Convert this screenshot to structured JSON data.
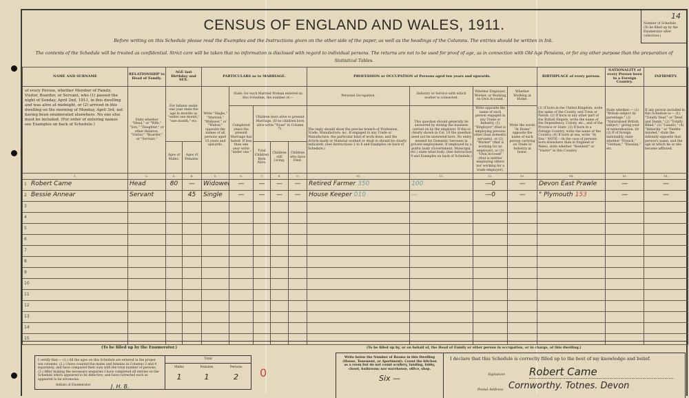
{
  "title": "CENSUS OF ENGLAND AND WALES, 1911.",
  "instructions": "Before writing on this Schedule please read the Examples and the Instructions given on the other side of the paper, as well as the headings of the Columns. The entries should be written in Ink.",
  "confidential": "The contents of the Schedule will be treated as confidential. Strict care will be taken that no information is disclosed with regard to individual persons. The returns are not to be used for proof of age, as in connection with Old Age Pensions, or for any other purpose than the preparation of Statistical Tables.",
  "schedule": {
    "label": "Number of Schedule",
    "note": "(To be filled up by the Enumerator after collection.)",
    "value": "14"
  },
  "headers": {
    "name": "NAME AND SURNAME",
    "relationship": "RELATIONSHIP to Head of Family.",
    "age": "AGE last Birthday and SEX.",
    "marriage": "PARTICULARS as to MARRIAGE.",
    "occupation": "PROFESSION or OCCUPATION of Persons aged ten years and upwards.",
    "birthplace": "BIRTHPLACE of every person.",
    "nationality": "NATIONALITY of every Person born in a Foreign Country.",
    "infirmity": "INFIRMITY."
  },
  "bodies": {
    "c1": "of every Person, whether Member of Family, Visitor, Boarder, or Servant, who (1) passed the night of Sunday, April 2nd, 1911, in this dwelling and was alive at midnight, or (2) arrived in this dwelling on the morning of Monday, April 3rd, not having been enumerated elsewhere. No one else must be included. (For order of entering names see Examples on back of Schedule.)",
    "c2": "State whether \"Head,\" or \"Wife,\" \"Son,\" \"Daughter,\" or other Relative, \"Visitor,\" \"Boarder,\" or \"Servant.\"",
    "c3top": "For Infants under one year state the age in months as \"under one month,\" \"one month,\" etc.",
    "c3": "Ages of Males.",
    "c4": "Ages of Females.",
    "c5": "Write \"Single,\" \"Married,\" \"Widower,\" or \"Widow,\" opposite the names of all persons aged 15 years and upwards.",
    "c6to9top": "State, for each Married Woman entered on this Schedule, the number of:—",
    "c6": "Completed years the present Marriage has lasted. If less than one year write \"under one.\"",
    "c7to9top": "Children born alive to present Marriage. (If no children born alive write \"None\" in Column 7).",
    "c7": "Total Children Born Alive.",
    "c8": "Children still Living.",
    "c9": "Children who have Died.",
    "c10top": "Personal Occupation.",
    "c10": "The reply should show the precise branch of Profession, Trade, Manufacture, &c. If engaged in any Trade or Manufacture, the particular kind of work done, and the Article made or Material worked or dealt in should be clearly indicated. (See Instructions 1 to 8 and Examples on back of Schedule.)",
    "c11top": "Industry or Service with which worker is connected.",
    "c11": "This question should generally be answered by stating the business carried on by the employer. If this is clearly shown in Col. 10 the question need not be answered here. No entry needed for Domestic Servants in private employment. If employed by a public body (Government, Municipal, etc.) state what body. (See Instruction 9 and Examples on back of Schedule.)",
    "c12top": "Whether Employer, Worker, or Working on Own Account.",
    "c12": "Write opposite the name of each person engaged in any Trade or Industry, (1) \"Employer\" (that is employing persons other than domestic servants), or (2) \"Worker\" (that is working for an employer), or (3) \"Own Account\" (that is neither employing others nor working for a trade employer).",
    "c13top": "Whether Working at Home.",
    "c13": "Write the words \"At Home\" opposite the name of each person carrying on Trade or Industry at home.",
    "c14": "(1) If born in the United Kingdom, write the name of the County, and Town or Parish. (2) If born in any other part of the British Empire, write the name of the Dependency, Colony, etc., and of the Province or State. (3) If born in a Foreign Country, write the name of the Country. (4) If born at sea, write \"At Sea.\" NOTE.—In the case of persons born elsewhere than in England or Wales, state whether \"Resident\" or \"Visitor\" in this Country.",
    "c15": "State whether:— (1) \"British subject by parentage.\" (2) \"Naturalised British subject,\" giving year of naturalisation. Or (3) If of foreign nationality, state whether \"French,\" \"German,\" \"Russian,\" etc.",
    "c16": "If any person included in this Schedule is:— (1) \"Totally Deaf,\" or \"Deaf and Dumb,\" (2) \"Totally Blind,\" (3) \"Lunatic,\" (4) \"Imbecile,\" or \"Feeble-minded,\" state the infirmity opposite that person's name, and the age at which he or she became afflicted."
  },
  "col_numbers": [
    "1.",
    "2.",
    "3.",
    "4.",
    "5.",
    "6.",
    "7.",
    "8.",
    "9.",
    "10.",
    "11.",
    "12.",
    "13.",
    "14.",
    "15.",
    "16."
  ],
  "rows": [
    {
      "n": "1",
      "name": "Robert Came",
      "rel": "Head",
      "male": "80",
      "female": "—",
      "marriage": "Widower",
      "c6": "—",
      "c7": "—",
      "c8": "—",
      "c9": "—",
      "occ": "Retired Farmer",
      "occ_code": "350",
      "ind": "100",
      "emp": "—0",
      "home": "—",
      "birth": "Devon East Prawle",
      "nat": "—",
      "inf": "—"
    },
    {
      "n": "2",
      "name": "Bessie Annear",
      "rel": "Servant",
      "male": "",
      "female": "45",
      "marriage": "Single",
      "c6": "—",
      "c7": "—",
      "c8": "—",
      "c9": "—",
      "occ": "House Keeper",
      "occ_code": "010",
      "ind": "—",
      "emp": "—0",
      "home": "—",
      "birth": "\" Plymouth",
      "birth_code": "153",
      "nat": "—",
      "inf": "—"
    },
    {
      "n": "3"
    },
    {
      "n": "4"
    },
    {
      "n": "5"
    },
    {
      "n": "6"
    },
    {
      "n": "7"
    },
    {
      "n": "8"
    },
    {
      "n": "9"
    },
    {
      "n": "10"
    },
    {
      "n": "11"
    },
    {
      "n": "12"
    },
    {
      "n": "13"
    },
    {
      "n": "14"
    },
    {
      "n": "15"
    }
  ],
  "enumerator": {
    "heading": "(To be filled up by the Enumerator.)",
    "certify": "I certify that:— (1.) All the ages on this Schedule are entered in the proper sex columns. (2.) I have counted the males and females in Columns 3 and 4 separately, and have compared their sum with the total number of persons. (3.) After making the necessary enquiries I have completed all entries on the Schedule which appeared to be defective, and have corrected such as appeared to be erroneous.",
    "initials_label": "Initials of Enumerator",
    "initials": "J. H. B.",
    "total_label": "Total",
    "males_label": "Males",
    "females_label": "Females",
    "persons_label": "Persons",
    "males": "1",
    "females": "1",
    "persons": "2",
    "mark": "0"
  },
  "householder": {
    "heading": "(To be filled up by, or on behalf of, the Head of Family or other person in occupation, or in charge, of this dwelling.)",
    "rooms_text": "Write below the Number of Rooms in this Dwelling (House, Tenement, or Apartment). Count the kitchen as a room but do not count scullery, landing, lobby, closet, bathroom; nor warehouse, office, shop.",
    "rooms": "Six —",
    "declaration": "I declare that this Schedule is correctly filled up to the best of my knowledge and belief.",
    "signature_label": "Signature",
    "signature": "Robert Came",
    "address_label": "Postal Address",
    "address": "Cornworthy. Totnes. Devon"
  }
}
